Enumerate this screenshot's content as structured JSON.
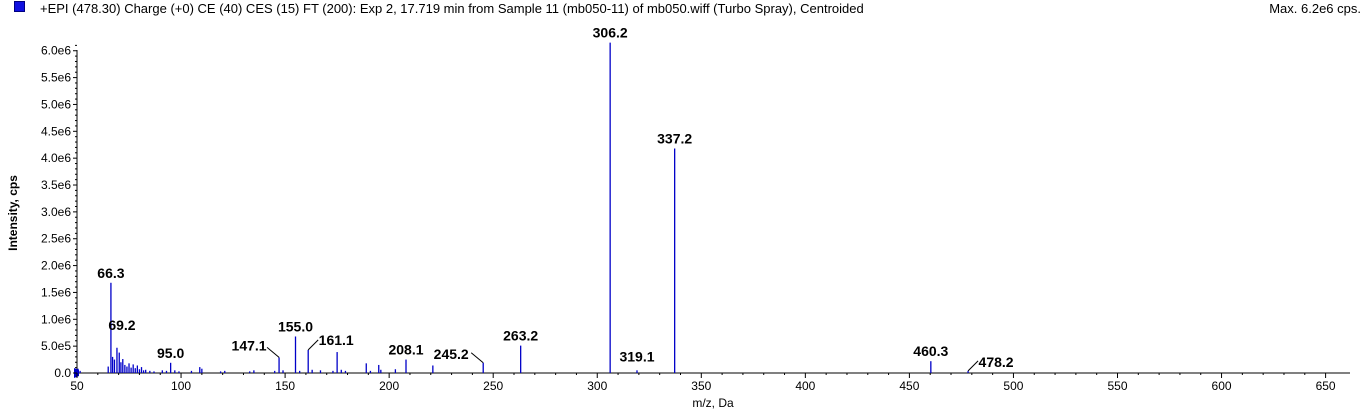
{
  "header": {
    "title": "+EPI (478.30) Charge (+0) CE (40) CES (15) FT (200): Exp 2, 17.719 min from Sample 11 (mb050-11) of mb050.wiff (Turbo Spray), Centroided",
    "max_label": "Max. 6.2e6 cps."
  },
  "colors": {
    "series": "#0000c8",
    "swatch": "#1010e0",
    "axis": "#000000"
  },
  "chart_data": {
    "type": "bar",
    "xlabel": "m/z, Da",
    "ylabel": "Intensity, cps",
    "xlim": [
      50,
      655
    ],
    "ylim": [
      0,
      6200000.0
    ],
    "x_ticks": [
      50,
      100,
      150,
      200,
      250,
      300,
      350,
      400,
      450,
      500,
      550,
      600,
      650
    ],
    "x_tick_labels": [
      "50",
      "100",
      "150",
      "200",
      "250",
      "300",
      "350",
      "400",
      "450",
      "500",
      "550",
      "600",
      "650"
    ],
    "y_ticks": [
      0,
      500000.0,
      1000000.0,
      1500000.0,
      2000000.0,
      2500000.0,
      3000000.0,
      3500000.0,
      4000000.0,
      4500000.0,
      5000000.0,
      5500000.0,
      6000000.0
    ],
    "y_tick_labels": [
      "0.0",
      "5.0e5",
      "1.0e6",
      "1.5e6",
      "2.0e6",
      "2.5e6",
      "3.0e6",
      "3.5e6",
      "4.0e6",
      "4.5e6",
      "5.0e6",
      "5.5e6",
      "6.0e6"
    ],
    "peaks": [
      {
        "mz": 50.5,
        "intensity": 80000
      },
      {
        "mz": 51.5,
        "intensity": 40000
      },
      {
        "mz": 65.0,
        "intensity": 120000
      },
      {
        "mz": 66.3,
        "intensity": 1680000
      },
      {
        "mz": 67.1,
        "intensity": 300000
      },
      {
        "mz": 68.0,
        "intensity": 250000
      },
      {
        "mz": 69.2,
        "intensity": 470000
      },
      {
        "mz": 70.3,
        "intensity": 380000
      },
      {
        "mz": 71.1,
        "intensity": 200000
      },
      {
        "mz": 72.0,
        "intensity": 260000
      },
      {
        "mz": 73.0,
        "intensity": 150000
      },
      {
        "mz": 74.0,
        "intensity": 120000
      },
      {
        "mz": 75.0,
        "intensity": 180000
      },
      {
        "mz": 76.0,
        "intensity": 100000
      },
      {
        "mz": 77.0,
        "intensity": 160000
      },
      {
        "mz": 78.0,
        "intensity": 90000
      },
      {
        "mz": 79.0,
        "intensity": 140000
      },
      {
        "mz": 80.0,
        "intensity": 70000
      },
      {
        "mz": 81.0,
        "intensity": 110000
      },
      {
        "mz": 82.0,
        "intensity": 50000
      },
      {
        "mz": 83.0,
        "intensity": 60000
      },
      {
        "mz": 85.0,
        "intensity": 40000
      },
      {
        "mz": 87.0,
        "intensity": 30000
      },
      {
        "mz": 91.0,
        "intensity": 50000
      },
      {
        "mz": 93.0,
        "intensity": 40000
      },
      {
        "mz": 95.0,
        "intensity": 190000
      },
      {
        "mz": 97.0,
        "intensity": 50000
      },
      {
        "mz": 99.0,
        "intensity": 30000
      },
      {
        "mz": 105.0,
        "intensity": 40000
      },
      {
        "mz": 109.0,
        "intensity": 110000
      },
      {
        "mz": 110.0,
        "intensity": 80000
      },
      {
        "mz": 119.0,
        "intensity": 30000
      },
      {
        "mz": 121.0,
        "intensity": 40000
      },
      {
        "mz": 133.0,
        "intensity": 30000
      },
      {
        "mz": 135.0,
        "intensity": 50000
      },
      {
        "mz": 145.0,
        "intensity": 40000
      },
      {
        "mz": 147.1,
        "intensity": 290000
      },
      {
        "mz": 149.0,
        "intensity": 50000
      },
      {
        "mz": 155.0,
        "intensity": 680000
      },
      {
        "mz": 157.0,
        "intensity": 40000
      },
      {
        "mz": 161.1,
        "intensity": 430000
      },
      {
        "mz": 163.0,
        "intensity": 60000
      },
      {
        "mz": 167.0,
        "intensity": 50000
      },
      {
        "mz": 173.0,
        "intensity": 40000
      },
      {
        "mz": 175.0,
        "intensity": 390000
      },
      {
        "mz": 177.0,
        "intensity": 60000
      },
      {
        "mz": 179.0,
        "intensity": 40000
      },
      {
        "mz": 189.0,
        "intensity": 180000
      },
      {
        "mz": 191.0,
        "intensity": 40000
      },
      {
        "mz": 195.0,
        "intensity": 150000
      },
      {
        "mz": 196.0,
        "intensity": 60000
      },
      {
        "mz": 203.0,
        "intensity": 70000
      },
      {
        "mz": 208.1,
        "intensity": 250000
      },
      {
        "mz": 221.0,
        "intensity": 140000
      },
      {
        "mz": 245.2,
        "intensity": 190000
      },
      {
        "mz": 263.2,
        "intensity": 510000
      },
      {
        "mz": 306.2,
        "intensity": 6150000
      },
      {
        "mz": 319.1,
        "intensity": 50000
      },
      {
        "mz": 337.2,
        "intensity": 4180000
      },
      {
        "mz": 460.3,
        "intensity": 220000
      },
      {
        "mz": 478.2,
        "intensity": 40000
      }
    ],
    "labels": [
      {
        "text": "66.3",
        "mz": 66.3,
        "intensity": 1680000
      },
      {
        "text": "69.2",
        "mz": 69.2,
        "intensity": 470000
      },
      {
        "text": "95.0",
        "mz": 95.0,
        "intensity": 190000
      },
      {
        "text": "147.1",
        "mz": 147.1,
        "intensity": 290000
      },
      {
        "text": "155.0",
        "mz": 155.0,
        "intensity": 680000
      },
      {
        "text": "161.1",
        "mz": 161.1,
        "intensity": 430000
      },
      {
        "text": "208.1",
        "mz": 208.1,
        "intensity": 250000
      },
      {
        "text": "245.2",
        "mz": 245.2,
        "intensity": 190000
      },
      {
        "text": "263.2",
        "mz": 263.2,
        "intensity": 510000
      },
      {
        "text": "306.2",
        "mz": 306.2,
        "intensity": 6150000
      },
      {
        "text": "319.1",
        "mz": 319.1,
        "intensity": 50000
      },
      {
        "text": "337.2",
        "mz": 337.2,
        "intensity": 4180000
      },
      {
        "text": "460.3",
        "mz": 460.3,
        "intensity": 220000
      },
      {
        "text": "478.2",
        "mz": 478.2,
        "intensity": 40000
      }
    ]
  }
}
